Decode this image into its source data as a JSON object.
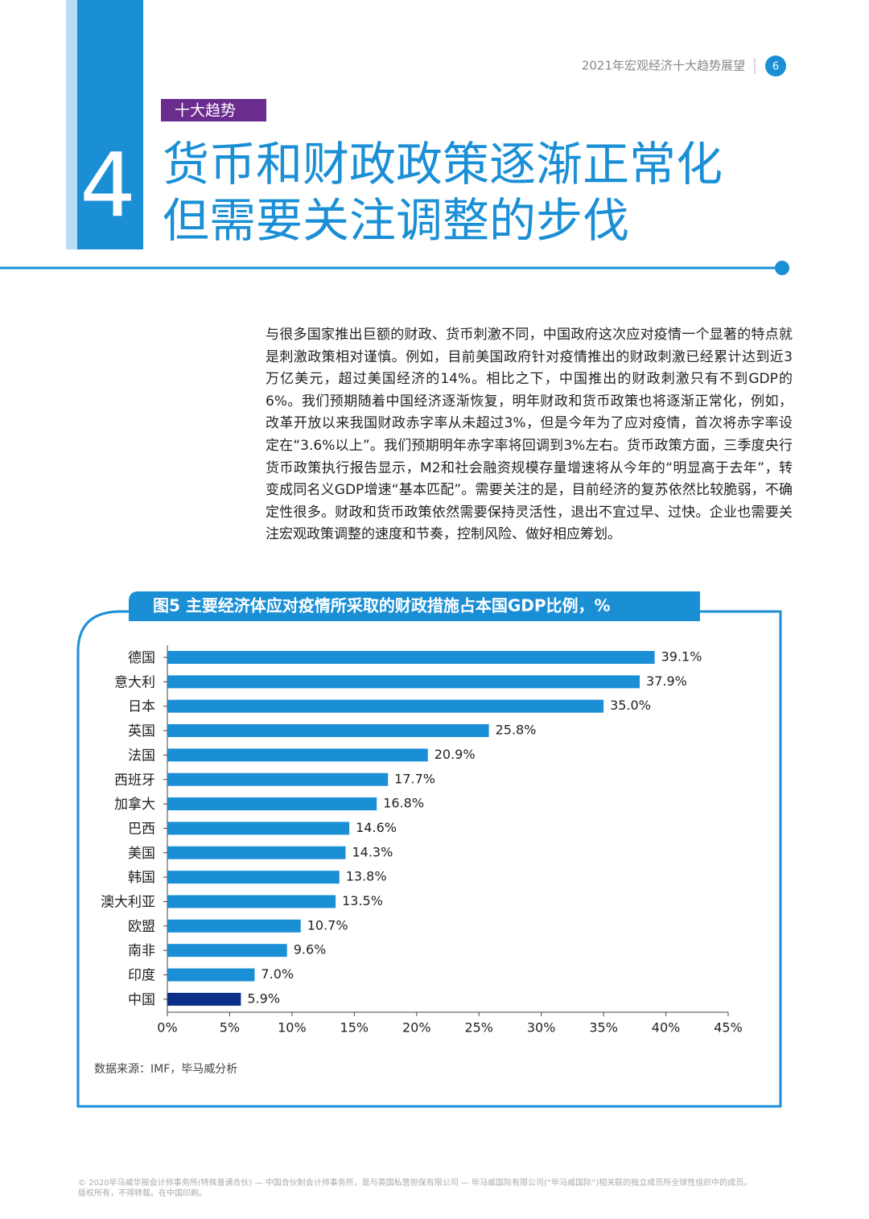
{
  "header": {
    "running_title": "2021年宏观经济十大趋势展望",
    "page_number": "6"
  },
  "section": {
    "number": "4",
    "tag": "十大趋势",
    "title_lines": [
      "货币和财政政策逐渐正常化",
      "但需要关注调整的步伐"
    ]
  },
  "body": "与很多国家推出巨额的财政、货币刺激不同，中国政府这次应对疫情一个显著的特点就是刺激政策相对谨慎。例如，目前美国政府针对疫情推出的财政刺激已经累计达到近3万亿美元，超过美国经济的14%。相比之下，中国推出的财政刺激只有不到GDP的6%。我们预期随着中国经济逐渐恢复，明年财政和货币政策也将逐渐正常化，例如，改革开放以来我国财政赤字率从未超过3%，但是今年为了应对疫情，首次将赤字率设定在“3.6%以上”。我们预期明年赤字率将回调到3%左右。货币政策方面，三季度央行货币政策执行报告显示，M2和社会融资规模存量增速将从今年的“明显高于去年”，转变成同名义GDP增速“基本匹配”。需要关注的是，目前经济的复苏依然比较脆弱，不确定性很多。财政和货币政策依然需要保持灵活性，退出不宜过早、过快。企业也需要关注宏观政策调整的速度和节奏，控制风险、做好相应筹划。",
  "chart_data": {
    "type": "barh",
    "title": "图5  主要经济体应对疫情所采取的财政措施占本国GDP比例，%",
    "categories": [
      "德国",
      "意大利",
      "日本",
      "英国",
      "法国",
      "西班牙",
      "加拿大",
      "巴西",
      "美国",
      "韩国",
      "澳大利亚",
      "欧盟",
      "南非",
      "印度",
      "中国"
    ],
    "values": [
      39.1,
      37.9,
      35.0,
      25.8,
      20.9,
      17.7,
      16.8,
      14.6,
      14.3,
      13.8,
      13.5,
      10.7,
      9.6,
      7.0,
      5.9
    ],
    "value_labels": [
      "39.1%",
      "37.9%",
      "35.0%",
      "25.8%",
      "20.9%",
      "17.7%",
      "16.8%",
      "14.6%",
      "14.3%",
      "13.8%",
      "13.5%",
      "10.7%",
      "9.6%",
      "7.0%",
      "5.9%"
    ],
    "colors": [
      "#1a8fd6",
      "#1a8fd6",
      "#1a8fd6",
      "#1a8fd6",
      "#1a8fd6",
      "#1a8fd6",
      "#1a8fd6",
      "#1a8fd6",
      "#1a8fd6",
      "#1a8fd6",
      "#1a8fd6",
      "#1a8fd6",
      "#1a8fd6",
      "#1a8fd6",
      "#0c2f8a"
    ],
    "xlim": [
      0,
      45
    ],
    "xticks": [
      {
        "value": 0,
        "label": "0%"
      },
      {
        "value": 5,
        "label": "5%"
      },
      {
        "value": 10,
        "label": "10%"
      },
      {
        "value": 15,
        "label": "15%"
      },
      {
        "value": 20,
        "label": "20%"
      },
      {
        "value": 25,
        "label": "25%"
      },
      {
        "value": 30,
        "label": "30%"
      },
      {
        "value": 35,
        "label": "35%"
      },
      {
        "value": 40,
        "label": "40%"
      },
      {
        "value": 45,
        "label": "45%"
      }
    ],
    "source": "数据来源：IMF，毕马威分析"
  },
  "footer": [
    "© 2020毕马威华振会计师事务所(特殊普通合伙) — 中国合伙制会计师事务所，是与英国私营担保有限公司 — 毕马威国际有限公司(“毕马威国际”)相关联的独立成员所全球性组织中的成员。",
    "版权所有，不得转载。在中国印刷。"
  ]
}
